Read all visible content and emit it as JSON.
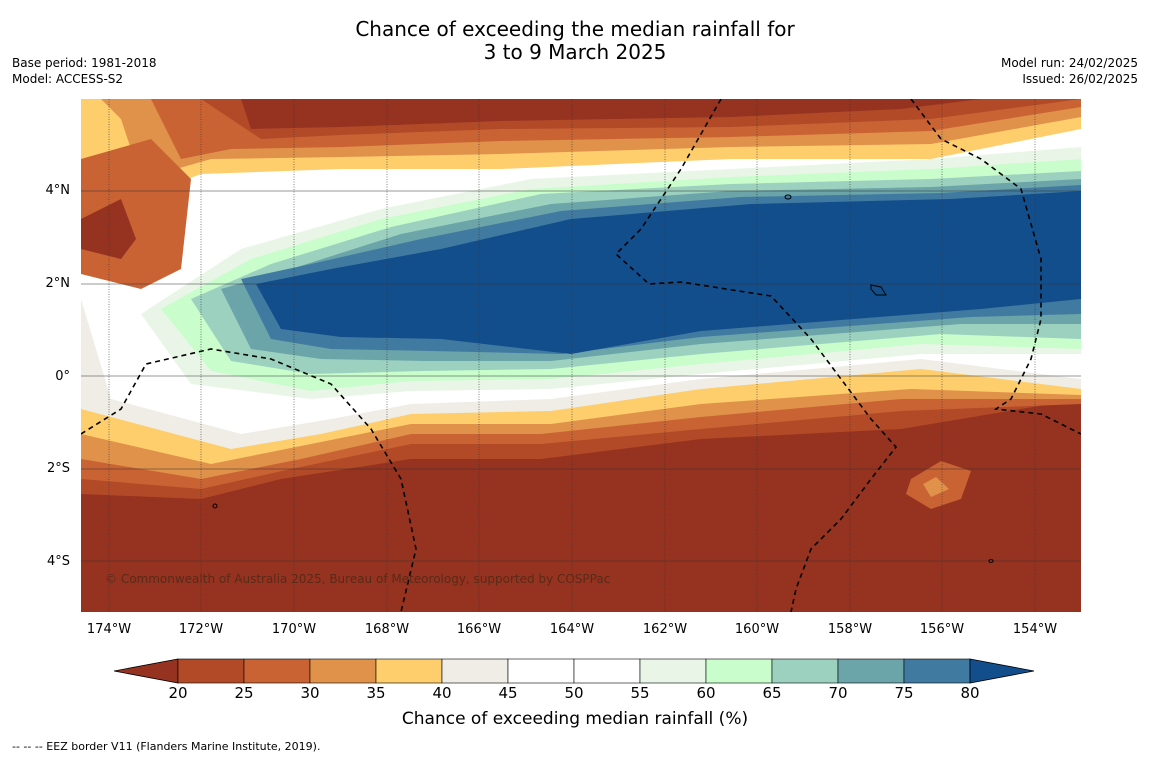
{
  "title": {
    "line1": "Chance of exceeding the median rainfall for",
    "line2": "3 to 9 March 2025"
  },
  "meta": {
    "base_period": "Base period: 1981-2018",
    "model": "Model: ACCESS-S2",
    "model_run": "Model run: 24/02/2025",
    "issued": "Issued: 26/02/2025"
  },
  "copyright": "© Commonwealth of Australia 2025, Bureau of Meteorology, supported by COSPPac",
  "footnote": "--  --  -- EEZ border V11 (Flanders Marine Institute, 2019).",
  "axes": {
    "lat_labels": [
      "4°N",
      "2°N",
      "0°",
      "2°S",
      "4°S"
    ],
    "lon_labels": [
      "174°W",
      "172°W",
      "170°W",
      "168°W",
      "166°W",
      "164°W",
      "162°W",
      "160°W",
      "158°W",
      "156°W",
      "154°W"
    ]
  },
  "colorbar": {
    "title": "Chance of exceeding median rainfall (%)",
    "ticks": [
      "20",
      "25",
      "30",
      "35",
      "40",
      "45",
      "50",
      "55",
      "60",
      "65",
      "70",
      "75",
      "80"
    ],
    "colors": [
      "#963220",
      "#b24a28",
      "#c96334",
      "#e0914a",
      "#fecd6c",
      "#efede6",
      "#ffffff",
      "#ffffff",
      "#e9f6e7",
      "#c9fdcc",
      "#9bd1be",
      "#6ba4a9",
      "#417aa0",
      "#134e8c"
    ]
  }
}
